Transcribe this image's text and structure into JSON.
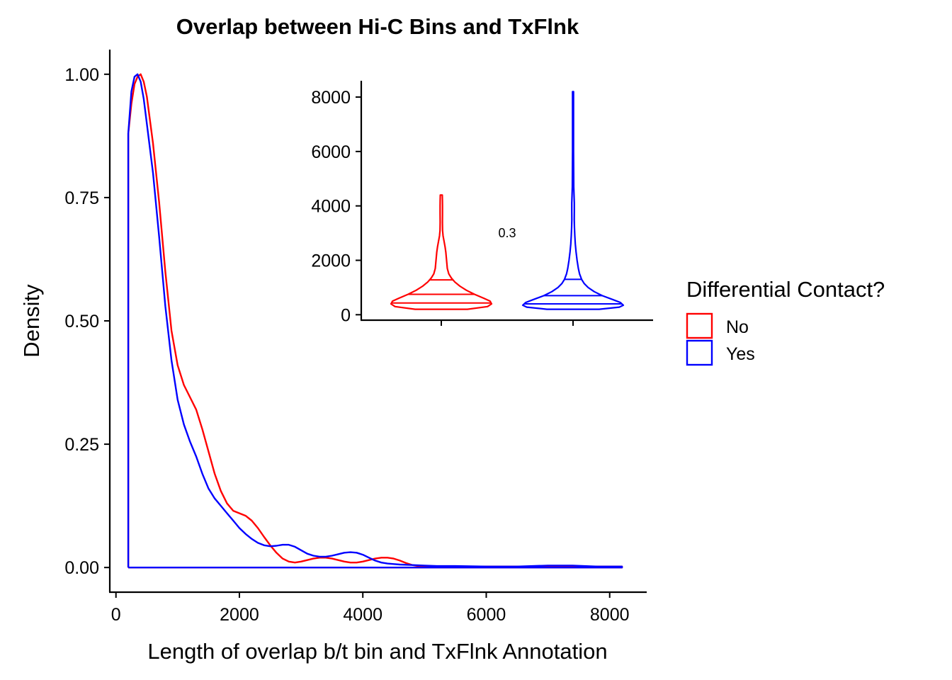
{
  "chart_data": [
    {
      "type": "line",
      "title": "Overlap between Hi-C Bins and TxFlnk",
      "xlabel": "Length of overlap b/t bin and TxFlnk Annotation",
      "ylabel": "Density",
      "xlim": [
        -100,
        8600
      ],
      "ylim": [
        -0.05,
        1.05
      ],
      "xticks": [
        "0",
        "2000",
        "4000",
        "6000",
        "8000"
      ],
      "xtick_values": [
        0,
        2000,
        4000,
        6000,
        8000
      ],
      "yticks": [
        "0.00",
        "0.25",
        "0.50",
        "0.75",
        "1.00"
      ],
      "ytick_values": [
        0,
        0.25,
        0.5,
        0.75,
        1.0
      ],
      "grid": false,
      "series": [
        {
          "name": "No",
          "color": "#FF0000",
          "x": [
            200,
            200,
            250,
            300,
            350,
            400,
            450,
            500,
            600,
            700,
            800,
            900,
            1000,
            1100,
            1200,
            1300,
            1400,
            1500,
            1600,
            1700,
            1800,
            1900,
            2000,
            2100,
            2200,
            2300,
            2400,
            2500,
            2600,
            2700,
            2800,
            2900,
            3000,
            3100,
            3200,
            3300,
            3400,
            3500,
            3600,
            3700,
            3800,
            3900,
            4000,
            4100,
            4200,
            4300,
            4400,
            4500,
            4600,
            4700,
            4800,
            4900,
            5000,
            5100,
            5200,
            5500,
            6000,
            7000,
            8000,
            8200,
            8200
          ],
          "y": [
            0,
            0.88,
            0.94,
            0.98,
            0.995,
            1.0,
            0.985,
            0.955,
            0.86,
            0.74,
            0.6,
            0.48,
            0.41,
            0.37,
            0.345,
            0.32,
            0.28,
            0.235,
            0.19,
            0.155,
            0.13,
            0.115,
            0.11,
            0.105,
            0.095,
            0.08,
            0.062,
            0.045,
            0.03,
            0.018,
            0.012,
            0.01,
            0.012,
            0.015,
            0.018,
            0.02,
            0.02,
            0.018,
            0.015,
            0.012,
            0.01,
            0.01,
            0.012,
            0.015,
            0.018,
            0.02,
            0.02,
            0.018,
            0.014,
            0.009,
            0.005,
            0.003,
            0.002,
            0.002,
            0.002,
            0.002,
            0.002,
            0.002,
            0.002,
            0.002,
            0
          ]
        },
        {
          "name": "Yes",
          "color": "#0000FF",
          "x": [
            200,
            200,
            250,
            300,
            350,
            400,
            450,
            500,
            600,
            700,
            800,
            900,
            1000,
            1100,
            1200,
            1300,
            1400,
            1500,
            1600,
            1700,
            1800,
            1900,
            2000,
            2100,
            2200,
            2300,
            2400,
            2500,
            2600,
            2700,
            2800,
            2900,
            3000,
            3100,
            3200,
            3300,
            3400,
            3500,
            3600,
            3700,
            3800,
            3900,
            4000,
            4100,
            4200,
            4300,
            4400,
            4500,
            4600,
            4800,
            5000,
            5200,
            5500,
            6000,
            6500,
            7000,
            7400,
            7800,
            8200,
            8200
          ],
          "y": [
            0,
            0.88,
            0.965,
            0.995,
            1.0,
            0.985,
            0.95,
            0.9,
            0.8,
            0.67,
            0.53,
            0.42,
            0.34,
            0.29,
            0.255,
            0.225,
            0.19,
            0.16,
            0.14,
            0.125,
            0.11,
            0.095,
            0.08,
            0.068,
            0.058,
            0.05,
            0.045,
            0.043,
            0.044,
            0.046,
            0.046,
            0.042,
            0.035,
            0.028,
            0.024,
            0.022,
            0.022,
            0.024,
            0.027,
            0.03,
            0.031,
            0.03,
            0.026,
            0.02,
            0.014,
            0.01,
            0.008,
            0.007,
            0.006,
            0.005,
            0.004,
            0.003,
            0.003,
            0.002,
            0.002,
            0.004,
            0.004,
            0.002,
            0.002,
            0
          ]
        }
      ]
    },
    {
      "type": "violin",
      "ylim": [
        -200,
        8600
      ],
      "yticks": [
        "0",
        "2000",
        "4000",
        "6000",
        "8000"
      ],
      "ytick_values": [
        0,
        2000,
        4000,
        6000,
        8000
      ],
      "annotation": "0.3",
      "annotation_y": 3000,
      "series": [
        {
          "name": "No",
          "color": "#FF0000",
          "min": 200,
          "max": 4400,
          "quantiles": [
            430,
            750,
            1280
          ],
          "profile": [
            [
              200,
              0.52
            ],
            [
              300,
              0.92
            ],
            [
              400,
              1.0
            ],
            [
              500,
              0.97
            ],
            [
              600,
              0.85
            ],
            [
              750,
              0.66
            ],
            [
              900,
              0.5
            ],
            [
              1050,
              0.37
            ],
            [
              1200,
              0.27
            ],
            [
              1350,
              0.2
            ],
            [
              1500,
              0.15
            ],
            [
              1700,
              0.12
            ],
            [
              1900,
              0.11
            ],
            [
              2100,
              0.1
            ],
            [
              2300,
              0.09
            ],
            [
              2500,
              0.075
            ],
            [
              2700,
              0.055
            ],
            [
              2900,
              0.035
            ],
            [
              3100,
              0.025
            ],
            [
              3400,
              0.022
            ],
            [
              3700,
              0.024
            ],
            [
              4000,
              0.024
            ],
            [
              4200,
              0.022
            ],
            [
              4400,
              0.02
            ]
          ]
        },
        {
          "name": "Yes",
          "color": "#0000FF",
          "min": 200,
          "max": 8200,
          "quantiles": [
            400,
            700,
            1300
          ],
          "profile": [
            [
              200,
              0.52
            ],
            [
              280,
              0.92
            ],
            [
              350,
              1.0
            ],
            [
              450,
              0.94
            ],
            [
              550,
              0.8
            ],
            [
              700,
              0.58
            ],
            [
              850,
              0.42
            ],
            [
              1000,
              0.3
            ],
            [
              1150,
              0.22
            ],
            [
              1300,
              0.17
            ],
            [
              1500,
              0.13
            ],
            [
              1700,
              0.105
            ],
            [
              2000,
              0.08
            ],
            [
              2300,
              0.06
            ],
            [
              2600,
              0.045
            ],
            [
              2900,
              0.035
            ],
            [
              3200,
              0.028
            ],
            [
              3500,
              0.024
            ],
            [
              3800,
              0.026
            ],
            [
              4100,
              0.026
            ],
            [
              4400,
              0.02
            ],
            [
              4700,
              0.014
            ],
            [
              5200,
              0.012
            ],
            [
              6000,
              0.01
            ],
            [
              7000,
              0.01
            ],
            [
              8200,
              0.01
            ]
          ]
        }
      ]
    }
  ],
  "legend": {
    "title": "Differential Contact?",
    "placement": "right",
    "items": [
      {
        "label": "No",
        "color": "#FF0000"
      },
      {
        "label": "Yes",
        "color": "#0000FF"
      }
    ]
  }
}
